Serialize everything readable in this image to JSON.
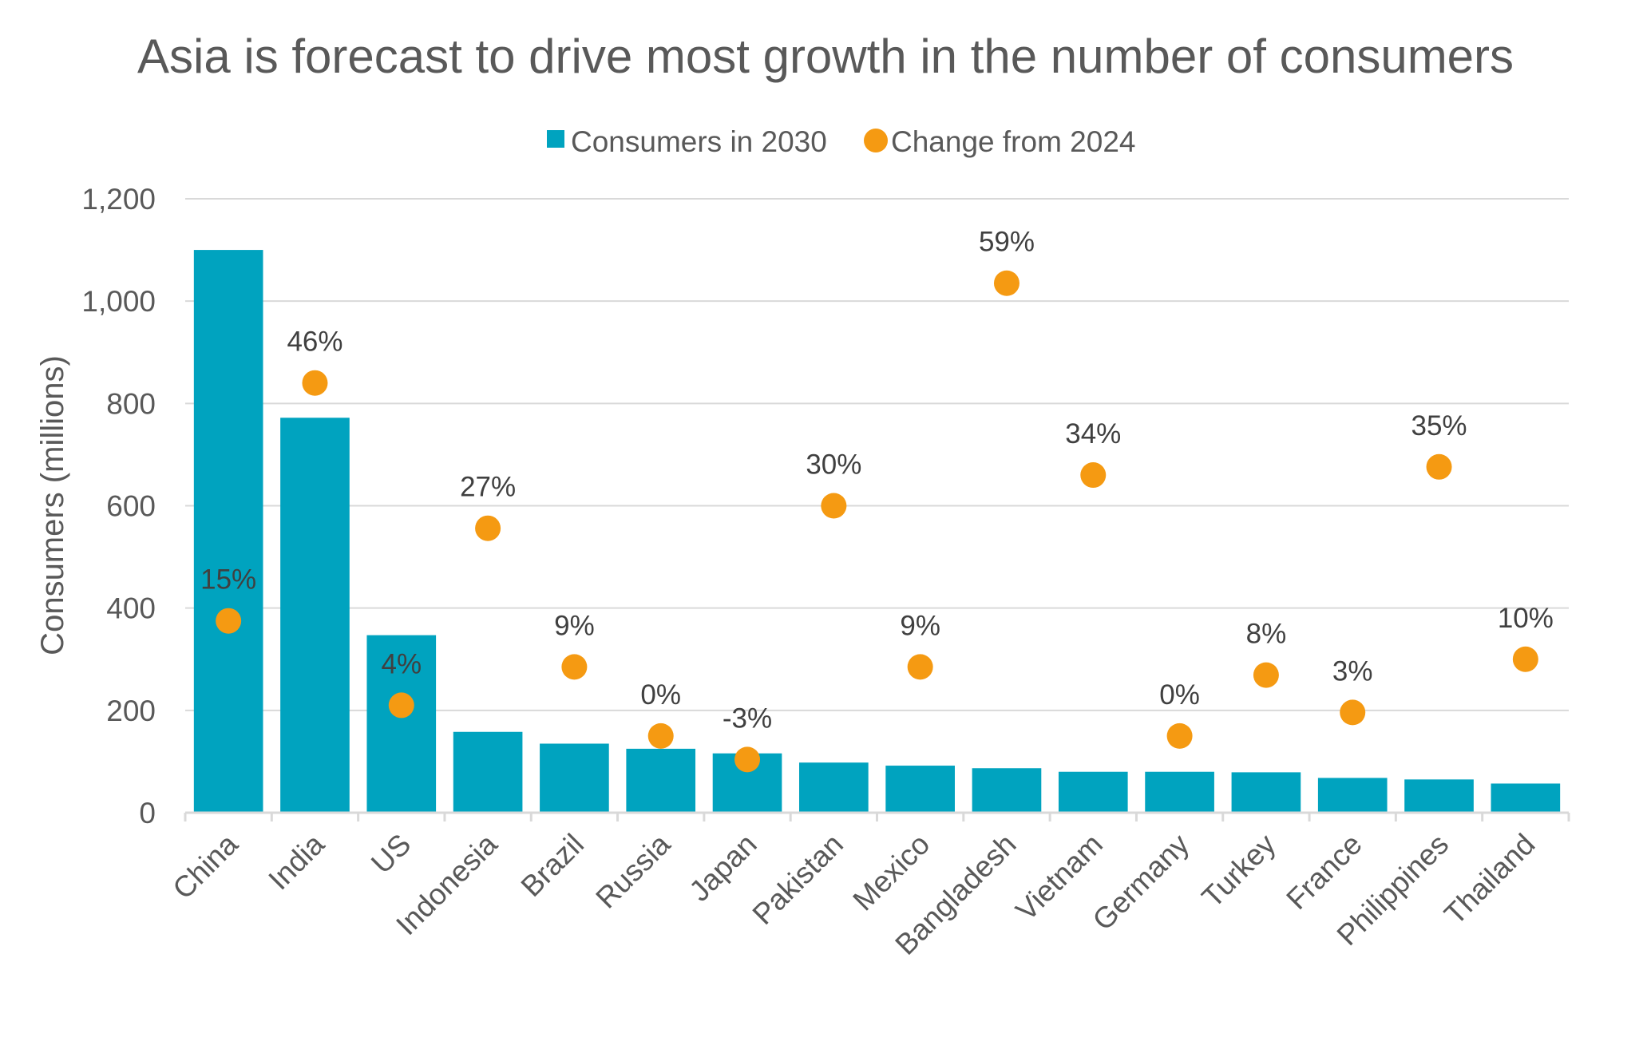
{
  "chart_data": {
    "type": "bar",
    "title": "Asia is forecast to drive most growth in the number of consumers",
    "ylabel": "Consumers (millions)",
    "xlabel": "",
    "ylim": [
      0,
      1200
    ],
    "yticks": [
      0,
      200,
      400,
      600,
      800,
      1000,
      1200
    ],
    "ytick_labels": [
      "0",
      "200",
      "400",
      "600",
      "800",
      "1,000",
      "1,200"
    ],
    "grid": true,
    "legend_position": "top-center",
    "categories": [
      "China",
      "India",
      "US",
      "Indonesia",
      "Brazil",
      "Russia",
      "Japan",
      "Pakistan",
      "Mexico",
      "Bangladesh",
      "Vietnam",
      "Germany",
      "Turkey",
      "France",
      "Philippines",
      "Thailand"
    ],
    "series": [
      {
        "name": "Consumers in 2030",
        "kind": "bar",
        "color": "#00A3BF",
        "values": [
          1100,
          772,
          347,
          158,
          135,
          125,
          116,
          98,
          92,
          87,
          80,
          80,
          79,
          68,
          65,
          57
        ]
      },
      {
        "name": "Change from 2024",
        "kind": "scatter",
        "color": "#F59A12",
        "values": [
          15,
          46,
          4,
          27,
          9,
          0,
          -3,
          30,
          9,
          59,
          34,
          0,
          8,
          3,
          35,
          10
        ],
        "labels": [
          "15%",
          "46%",
          "4%",
          "27%",
          "9%",
          "0%",
          "-3%",
          "30%",
          "9%",
          "59%",
          "34%",
          "0%",
          "8%",
          "3%",
          "35%",
          "10%"
        ],
        "plotted_y": [
          375,
          840,
          210,
          556,
          285,
          150,
          104,
          600,
          285,
          1035,
          660,
          150,
          269,
          196,
          676,
          300
        ]
      }
    ]
  }
}
